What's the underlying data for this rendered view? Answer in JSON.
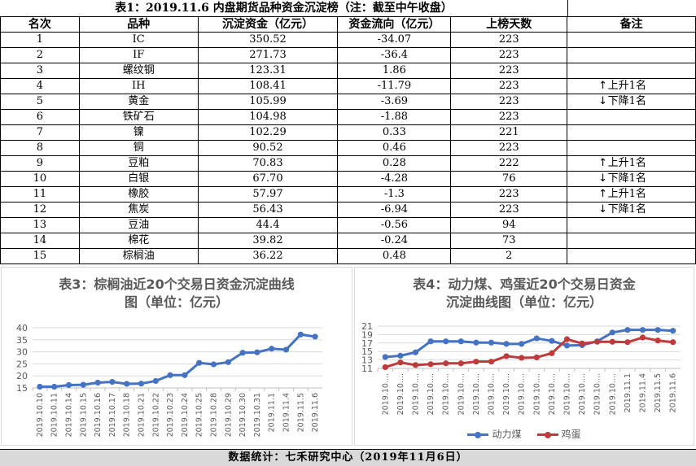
{
  "table_title": "表1：2019.11.6 内盘期货品种资金沉淀榜（注：截至中午收盘）",
  "headers": [
    "名次",
    "品种",
    "沉淀资金（亿元）",
    "资金流向（亿元）",
    "上榜天数",
    "备注"
  ],
  "rows": [
    {
      "rank": "1",
      "name": "IC",
      "capital": "350.52",
      "flow": "-34.07",
      "days": "223",
      "note": "",
      "dir": ""
    },
    {
      "rank": "2",
      "name": "IF",
      "capital": "271.73",
      "flow": "-36.4",
      "days": "223",
      "note": "",
      "dir": ""
    },
    {
      "rank": "3",
      "name": "螺纹钢",
      "capital": "123.31",
      "flow": "1.86",
      "days": "223",
      "note": "",
      "dir": ""
    },
    {
      "rank": "4",
      "name": "IH",
      "capital": "108.41",
      "flow": "-11.79",
      "days": "223",
      "note": "上升1名",
      "dir": "up"
    },
    {
      "rank": "5",
      "name": "黄金",
      "capital": "105.99",
      "flow": "-3.69",
      "days": "223",
      "note": "下降1名",
      "dir": "down"
    },
    {
      "rank": "6",
      "name": "铁矿石",
      "capital": "104.98",
      "flow": "-1.88",
      "days": "223",
      "note": "",
      "dir": ""
    },
    {
      "rank": "7",
      "name": "镍",
      "capital": "102.29",
      "flow": "0.33",
      "days": "221",
      "note": "",
      "dir": ""
    },
    {
      "rank": "8",
      "name": "铜",
      "capital": "90.52",
      "flow": "0.46",
      "days": "223",
      "note": "",
      "dir": ""
    },
    {
      "rank": "9",
      "name": "豆粕",
      "capital": "70.83",
      "flow": "0.28",
      "days": "222",
      "note": "上升1名",
      "dir": "up"
    },
    {
      "rank": "10",
      "name": "白银",
      "capital": "67.70",
      "flow": "-4.28",
      "days": "76",
      "note": "下降1名",
      "dir": "down"
    },
    {
      "rank": "11",
      "name": "橡胶",
      "capital": "57.97",
      "flow": "-1.3",
      "days": "223",
      "note": "上升1名",
      "dir": "up"
    },
    {
      "rank": "12",
      "name": "焦炭",
      "capital": "56.43",
      "flow": "-6.94",
      "days": "223",
      "note": "下降1名",
      "dir": "down"
    },
    {
      "rank": "13",
      "name": "豆油",
      "capital": "44.4",
      "flow": "-0.56",
      "days": "94",
      "note": "",
      "dir": ""
    },
    {
      "rank": "14",
      "name": "棉花",
      "capital": "39.82",
      "flow": "-0.24",
      "days": "73",
      "note": "",
      "dir": ""
    },
    {
      "rank": "15",
      "name": "棕榈油",
      "capital": "36.22",
      "flow": "0.48",
      "days": "2",
      "note": "",
      "dir": ""
    }
  ],
  "arrows": {
    "up": "↑",
    "down": "↓"
  },
  "footer": "数据统计：七禾研究中心（2019年11月6日）",
  "colors": {
    "blue": "#4472c4",
    "red": "#c0393b",
    "grid": "#d9d9d9",
    "axis_text": "#595959"
  },
  "chart_data": [
    {
      "type": "line",
      "title_line1": "表3：棕榈油近20个交易日资金沉淀曲线",
      "title_line2": "图（单位：亿元）",
      "x": [
        "2019.10.10",
        "2019.10.11",
        "2019.10.14",
        "2019.10.15",
        "2019.10.16",
        "2019.10.17",
        "2019.10.18",
        "2019.10.21",
        "2019.10.22",
        "2019.10.23",
        "2019.10.24",
        "2019.10.25",
        "2019.10.28",
        "2019.10.29",
        "2019.10.30",
        "2019.10.31",
        "2019.11.1",
        "2019.11.4",
        "2019.11.5",
        "2019.11.6"
      ],
      "series": [
        {
          "name": "",
          "values": [
            15.5,
            15.5,
            16.2,
            16.3,
            17.2,
            17.5,
            16.7,
            16.8,
            17.9,
            20.3,
            20.3,
            25.4,
            24.8,
            25.7,
            29.6,
            29.8,
            31.3,
            30.9,
            37.2,
            36.3
          ]
        }
      ],
      "ylim": [
        15,
        40
      ],
      "yticks": [
        15,
        20,
        25,
        30,
        35,
        40
      ],
      "legend": "none"
    },
    {
      "type": "line",
      "title_line1": "表4：动力煤、鸡蛋近20个交易日资金",
      "title_line2": "沉淀曲线图（单位：亿元）",
      "x": [
        "2019.10....",
        "2019.10....",
        "2019.10....",
        "2019.10....",
        "2019.10....",
        "2019.10....",
        "2019.10....",
        "2019.10....",
        "2019.10....",
        "2019.10....",
        "2019.10....",
        "2019.10....",
        "2019.10....",
        "2019.10....",
        "2019.10....",
        "2019.10....",
        "2019.11.1",
        "2019.11.4",
        "2019.11.5",
        "2019.11.6"
      ],
      "series": [
        {
          "name": "动力煤",
          "values": [
            13.7,
            14.0,
            14.8,
            17.4,
            17.4,
            17.4,
            17.1,
            17.1,
            16.8,
            16.8,
            18.1,
            17.5,
            16.4,
            16.5,
            17.4,
            19.5,
            20.1,
            20.1,
            20.1,
            19.9
          ]
        },
        {
          "name": "鸡蛋",
          "values": [
            11.3,
            12.4,
            11.8,
            12.0,
            12.2,
            12.2,
            12.6,
            12.6,
            13.9,
            13.5,
            13.6,
            14.6,
            17.9,
            16.9,
            17.3,
            17.3,
            17.2,
            18.3,
            17.6,
            17.2
          ]
        }
      ],
      "ylim": [
        11,
        21
      ],
      "yticks": [
        11,
        13,
        15,
        17,
        19,
        21
      ],
      "legend": "bottom"
    }
  ]
}
